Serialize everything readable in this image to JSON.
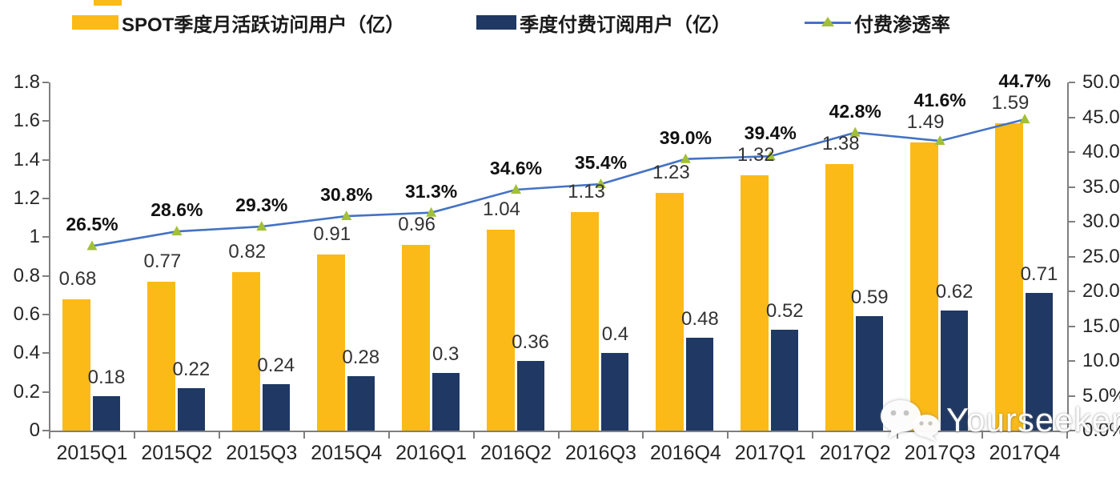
{
  "colors": {
    "mau_bar": "#FBBA17",
    "subs_bar": "#1F3864",
    "penetration_line": "#4472C4",
    "penetration_marker": "#A2C037",
    "axis": "#7f7f7f"
  },
  "watermark": {
    "text": "Yourseeker",
    "icon": "wechat-icon"
  },
  "chart_data": {
    "type": "bar+line",
    "title": "",
    "xlabel": "",
    "ylabel_left": "",
    "ylabel_right": "",
    "grid": false,
    "legend_position": "top",
    "categories": [
      "2015Q1",
      "2015Q2",
      "2015Q3",
      "2015Q4",
      "2016Q1",
      "2016Q2",
      "2016Q3",
      "2016Q4",
      "2017Q1",
      "2017Q2",
      "2017Q3",
      "2017Q4"
    ],
    "series": [
      {
        "name": "SPOT季度月活跃访问用户（亿）",
        "type": "bar",
        "axis": "left",
        "color": "#FBBA17",
        "values": [
          0.68,
          0.77,
          0.82,
          0.91,
          0.96,
          1.04,
          1.13,
          1.23,
          1.32,
          1.38,
          1.49,
          1.59
        ],
        "labels": [
          "0.68",
          "0.77",
          "0.82",
          "0.91",
          "0.96",
          "1.04",
          "1.13",
          "1.23",
          "1.32",
          "1.38",
          "1.49",
          "1.59"
        ]
      },
      {
        "name": "季度付费订阅用户（亿）",
        "type": "bar",
        "axis": "left",
        "color": "#1F3864",
        "values": [
          0.18,
          0.22,
          0.24,
          0.28,
          0.3,
          0.36,
          0.4,
          0.48,
          0.52,
          0.59,
          0.62,
          0.71
        ],
        "labels": [
          "0.18",
          "0.22",
          "0.24",
          "0.28",
          "0.3",
          "0.36",
          "0.4",
          "0.48",
          "0.52",
          "0.59",
          "0.62",
          "0.71"
        ]
      },
      {
        "name": "付费渗透率",
        "type": "line",
        "axis": "right",
        "color": "#4472C4",
        "marker": "triangle",
        "marker_color": "#A2C037",
        "values": [
          26.5,
          28.6,
          29.3,
          30.8,
          31.3,
          34.6,
          35.4,
          39.0,
          39.4,
          42.8,
          41.6,
          44.7
        ],
        "labels": [
          "26.5%",
          "28.6%",
          "29.3%",
          "30.8%",
          "31.3%",
          "34.6%",
          "35.4%",
          "39.0%",
          "39.4%",
          "42.8%",
          "41.6%",
          "44.7%"
        ]
      }
    ],
    "left_axis": {
      "min": 0,
      "max": 1.8,
      "step": 0.2,
      "ticks": [
        "0",
        "0.2",
        "0.4",
        "0.6",
        "0.8",
        "1",
        "1.2",
        "1.4",
        "1.6",
        "1.8"
      ]
    },
    "right_axis": {
      "min": 0,
      "max": 50,
      "step": 5,
      "ticks": [
        "0.0%",
        "5.0%",
        "10.0%",
        "15.0%",
        "20.0%",
        "25.0%",
        "30.0%",
        "35.0%",
        "40.0%",
        "45.0%",
        "50.0%"
      ]
    }
  }
}
